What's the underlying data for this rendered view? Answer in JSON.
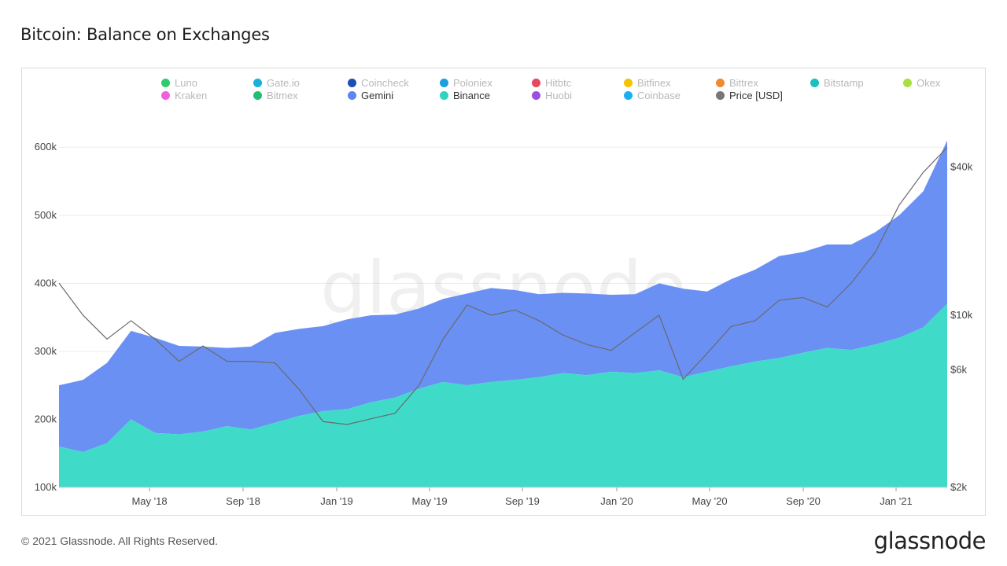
{
  "title": "Bitcoin: Balance on Exchanges",
  "footer": "© 2021 Glassnode. All Rights Reserved.",
  "brand": "glassnode",
  "watermark": "glassnode",
  "legend": [
    {
      "label": "Luno",
      "color": "#2ecc71",
      "active": false
    },
    {
      "label": "Gate.io",
      "color": "#1ab0d8",
      "active": false
    },
    {
      "label": "Coincheck",
      "color": "#1a4fb8",
      "active": false
    },
    {
      "label": "Poloniex",
      "color": "#1aa0e0",
      "active": false
    },
    {
      "label": "Hitbtc",
      "color": "#e84560",
      "active": false
    },
    {
      "label": "Bitfinex",
      "color": "#f5c400",
      "active": false
    },
    {
      "label": "Bittrex",
      "color": "#f08a30",
      "active": false
    },
    {
      "label": "Bitstamp",
      "color": "#18c0c0",
      "active": false
    },
    {
      "label": "Okex",
      "color": "#a8e040",
      "active": false
    },
    {
      "label": "Kraken",
      "color": "#f060e0",
      "active": false
    },
    {
      "label": "Bitmex",
      "color": "#20c070",
      "active": false
    },
    {
      "label": "Gemini",
      "color": "#5b86f0",
      "active": true
    },
    {
      "label": "Binance",
      "color": "#32d2c2",
      "active": true
    },
    {
      "label": "Huobi",
      "color": "#9a50e0",
      "active": false
    },
    {
      "label": "Coinbase",
      "color": "#1ab0f0",
      "active": false
    },
    {
      "label": "Price [USD]",
      "color": "#777777",
      "active": true
    }
  ],
  "chart_data": {
    "type": "area",
    "stacked": true,
    "grid": "horizontal",
    "legend_placement": "top",
    "x_ticks": [
      "May '18",
      "Sep '18",
      "Jan '19",
      "May '19",
      "Sep '19",
      "Jan '20",
      "May '20",
      "Sep '20",
      "Jan '21"
    ],
    "y_left": {
      "ticks": [
        "100k",
        "200k",
        "300k",
        "400k",
        "500k",
        "600k"
      ],
      "range": [
        100000,
        680000
      ]
    },
    "y_right": {
      "scale": "log",
      "ticks": [
        "$2k",
        "$6k",
        "$10k",
        "$40k"
      ],
      "tick_values": [
        2000,
        6000,
        10000,
        40000
      ],
      "range": [
        2000,
        80000
      ]
    },
    "x": [
      "2018-01",
      "2018-02",
      "2018-03",
      "2018-04",
      "2018-05",
      "2018-06",
      "2018-07",
      "2018-08",
      "2018-09",
      "2018-10",
      "2018-11",
      "2018-12",
      "2019-01",
      "2019-02",
      "2019-03",
      "2019-04",
      "2019-05",
      "2019-06",
      "2019-07",
      "2019-08",
      "2019-09",
      "2019-10",
      "2019-11",
      "2019-12",
      "2020-01",
      "2020-02",
      "2020-03",
      "2020-04",
      "2020-05",
      "2020-06",
      "2020-07",
      "2020-08",
      "2020-09",
      "2020-10",
      "2020-11",
      "2020-12",
      "2021-01",
      "2021-02"
    ],
    "series": [
      {
        "name": "Binance",
        "color": "#3fdbc8",
        "values": [
          160000,
          152000,
          165000,
          200000,
          180000,
          178000,
          182000,
          190000,
          185000,
          195000,
          205000,
          212000,
          215000,
          225000,
          232000,
          245000,
          255000,
          250000,
          255000,
          258000,
          262000,
          268000,
          265000,
          270000,
          268000,
          272000,
          262000,
          270000,
          278000,
          285000,
          290000,
          298000,
          305000,
          302000,
          310000,
          320000,
          335000,
          370000
        ]
      },
      {
        "name": "Gemini",
        "color": "#6b90f3",
        "values": [
          90000,
          106000,
          118000,
          130000,
          140000,
          130000,
          125000,
          115000,
          122000,
          132000,
          128000,
          125000,
          132000,
          128000,
          122000,
          118000,
          122000,
          135000,
          138000,
          132000,
          122000,
          118000,
          120000,
          113000,
          116000,
          128000,
          130000,
          118000,
          128000,
          135000,
          150000,
          148000,
          152000,
          155000,
          165000,
          180000,
          200000,
          240000
        ]
      },
      {
        "name": "Price [USD]",
        "color": "#6a6a6a",
        "values": [
          13500,
          10000,
          8000,
          9500,
          8000,
          6500,
          7500,
          6500,
          6500,
          6400,
          5000,
          3700,
          3600,
          3800,
          4000,
          5200,
          8000,
          11000,
          10000,
          10500,
          9500,
          8300,
          7600,
          7200,
          8500,
          10000,
          5500,
          7000,
          9000,
          9500,
          11500,
          11800,
          10800,
          13500,
          18000,
          28000,
          38000,
          48000
        ]
      }
    ]
  }
}
